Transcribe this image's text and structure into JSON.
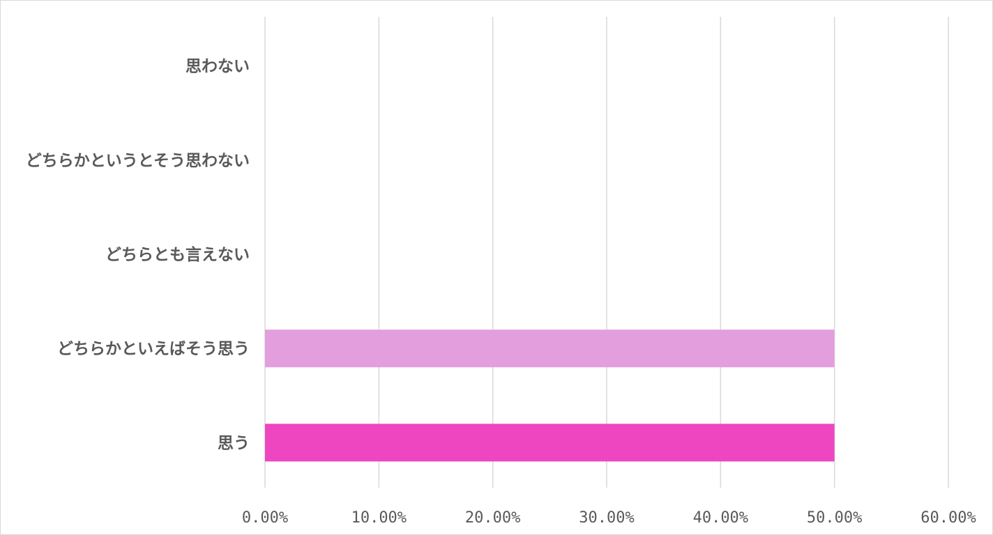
{
  "chart_data": {
    "type": "bar",
    "orientation": "horizontal",
    "categories": [
      "思う",
      "どちらかといえばそう思う",
      "どちらとも言えない",
      "どちらかというとそう思わない",
      "思わない"
    ],
    "values": [
      50,
      50,
      0,
      0,
      0
    ],
    "bar_colors": [
      "#ee46c0",
      "#e39edd",
      "#e39edd",
      "#e39edd",
      "#e39edd"
    ],
    "xlim": [
      0,
      60
    ],
    "x_ticks": [
      0,
      10,
      20,
      30,
      40,
      50,
      60
    ],
    "x_tick_labels": [
      "0.00%",
      "10.00%",
      "20.00%",
      "30.00%",
      "40.00%",
      "50.00%",
      "60.00%"
    ],
    "grid": true,
    "title": "",
    "xlabel": "",
    "ylabel": ""
  }
}
